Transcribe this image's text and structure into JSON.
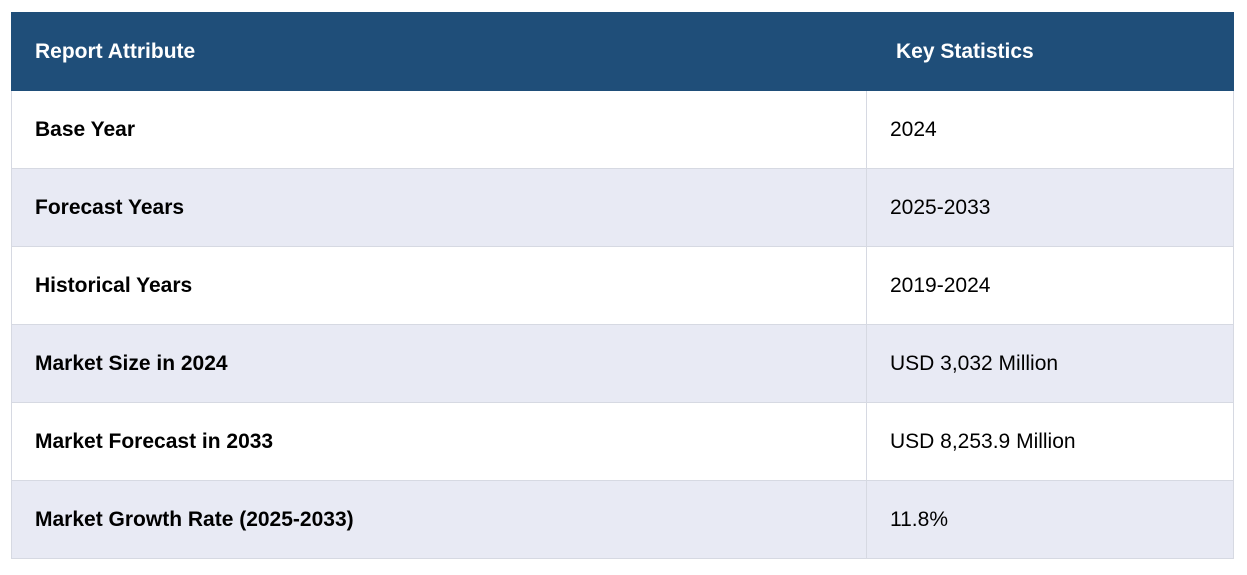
{
  "table": {
    "headers": [
      "Report Attribute",
      "Key Statistics"
    ],
    "rows": [
      {
        "attribute": "Base Year",
        "value": "2024"
      },
      {
        "attribute": "Forecast Years",
        "value": "2025-2033"
      },
      {
        "attribute": "Historical Years",
        "value": "2019-2024"
      },
      {
        "attribute": "Market Size in 2024",
        "value": "USD 3,032 Million"
      },
      {
        "attribute": "Market Forecast in 2033",
        "value": "USD 8,253.9 Million"
      },
      {
        "attribute": "Market Growth Rate (2025-2033)",
        "value": "11.8%"
      }
    ]
  },
  "colors": {
    "header_bg": "#1f4e79",
    "header_text": "#ffffff",
    "row_alt_bg": "#e8eaf4",
    "border": "#d6d9e2"
  }
}
